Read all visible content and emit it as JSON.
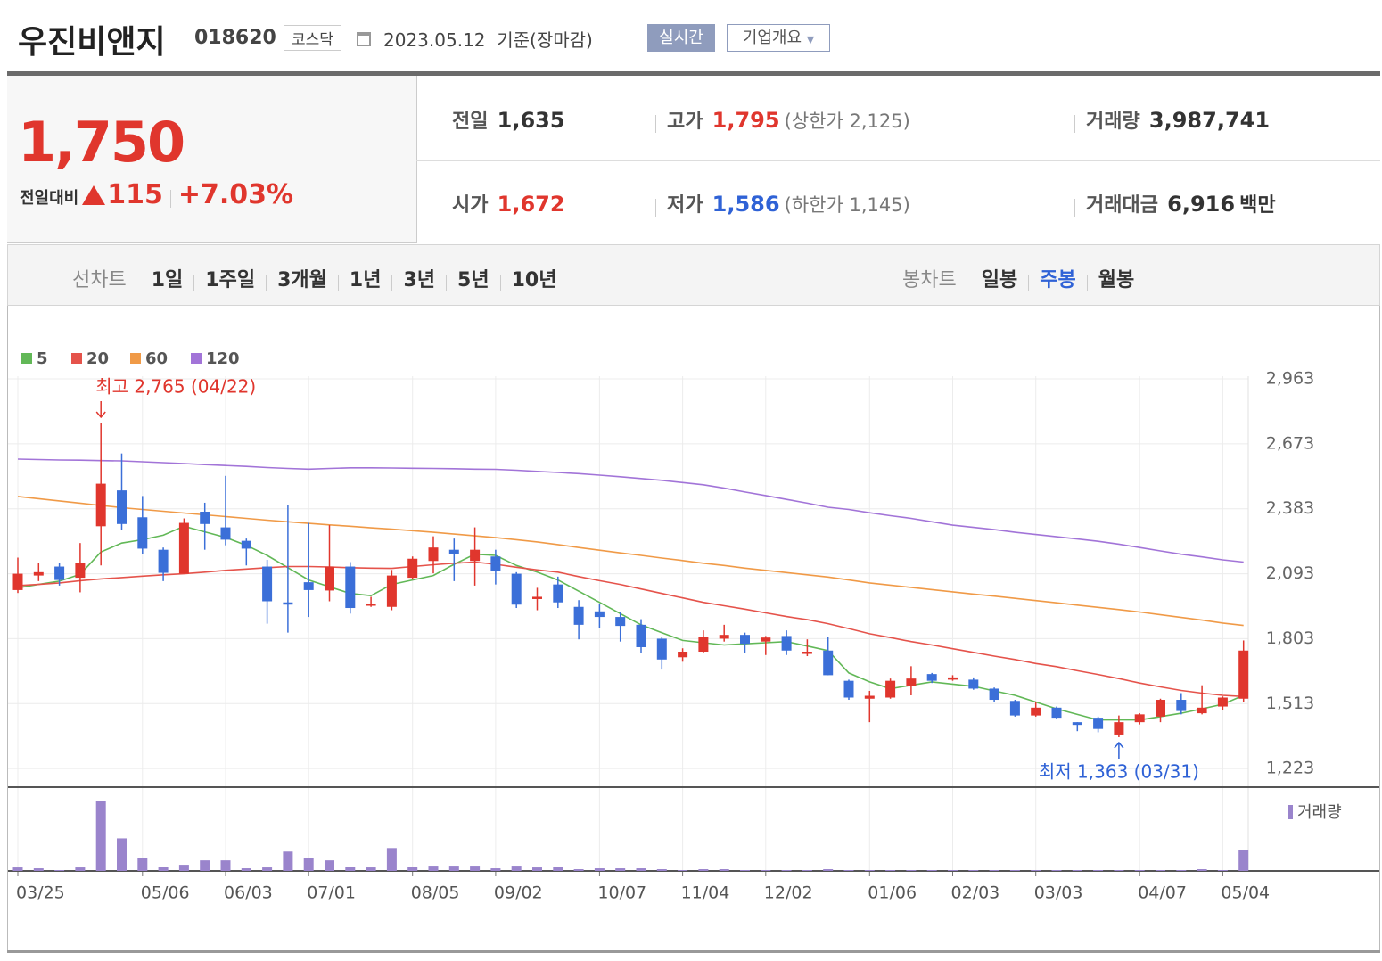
{
  "header": {
    "title": "우진비앤지",
    "code": "018620",
    "market": "코스닥",
    "date": "2023.05.12",
    "basis": "기준(장마감)",
    "realtime": "실시간",
    "company": "기업개요"
  },
  "quote": {
    "price": "1,750",
    "change_label": "전일대비",
    "change": "115",
    "change_pct": "+7.03%",
    "prev_label": "전일",
    "prev": "1,635",
    "open_label": "시가",
    "open": "1,672",
    "high_label": "고가",
    "high": "1,795",
    "upper_limit": "(상한가 2,125)",
    "low_label": "저가",
    "low": "1,586",
    "lower_limit": "(하한가 1,145)",
    "volume_label": "거래량",
    "volume": "3,987,741",
    "amount_label": "거래대금",
    "amount": "6,916",
    "amount_unit": "백만"
  },
  "tabs": {
    "line_label": "선차트",
    "line_periods": [
      "1일",
      "1주일",
      "3개월",
      "1년",
      "3년",
      "5년",
      "10년"
    ],
    "candle_label": "봉차트",
    "candle_periods": [
      "일봉",
      "주봉",
      "월봉"
    ],
    "active": "주봉"
  },
  "chart_data": {
    "type": "candlestick",
    "categories": [
      "03/25",
      null,
      null,
      null,
      null,
      null,
      "05/06",
      null,
      null,
      null,
      "06/03",
      null,
      null,
      null,
      "07/01",
      null,
      null,
      null,
      null,
      "08/05",
      null,
      null,
      null,
      "09/02",
      null,
      null,
      null,
      null,
      "10/07",
      null,
      null,
      null,
      "11/04",
      null,
      null,
      null,
      "12/02",
      null,
      null,
      null,
      null,
      "01/06",
      null,
      null,
      null,
      "02/03",
      null,
      null,
      null,
      "03/03",
      null,
      null,
      null,
      null,
      "04/07",
      null,
      null,
      null,
      "05/04",
      null
    ],
    "open": [
      2020,
      2085,
      2125,
      2075,
      2305,
      2465,
      2345,
      2200,
      2093,
      2370,
      2300,
      2240,
      2125,
      1965,
      2055,
      2018,
      2125,
      1950,
      1945,
      2075,
      2150,
      2200,
      2150,
      2170,
      2093,
      1980,
      2045,
      1945,
      1925,
      1900,
      1865,
      1803,
      1720,
      1745,
      1803,
      1820,
      1790,
      1815,
      1735,
      1750,
      1615,
      1535,
      1540,
      1590,
      1645,
      1620,
      1620,
      1580,
      1525,
      1460,
      1495,
      1430,
      1450,
      1375,
      1430,
      1455,
      1530,
      1470,
      1500,
      1535
    ],
    "high": [
      2165,
      2140,
      2140,
      2230,
      2765,
      2630,
      2440,
      2210,
      2340,
      2410,
      2530,
      2250,
      2155,
      2400,
      2320,
      2310,
      2145,
      1990,
      2110,
      2170,
      2260,
      2250,
      2300,
      2200,
      2100,
      2030,
      2080,
      1975,
      1960,
      1920,
      1890,
      1810,
      1760,
      1840,
      1865,
      1830,
      1815,
      1840,
      1800,
      1810,
      1620,
      1570,
      1625,
      1680,
      1650,
      1640,
      1630,
      1585,
      1530,
      1520,
      1500,
      1430,
      1455,
      1460,
      1470,
      1535,
      1560,
      1595,
      1545,
      1795
    ],
    "low": [
      2007,
      2060,
      2040,
      2010,
      2130,
      2290,
      2180,
      2060,
      2093,
      2200,
      2220,
      2130,
      1870,
      1830,
      1900,
      1970,
      1915,
      1945,
      1930,
      2070,
      2095,
      2060,
      2040,
      2045,
      1940,
      1930,
      1940,
      1800,
      1850,
      1790,
      1740,
      1665,
      1700,
      1740,
      1790,
      1740,
      1730,
      1730,
      1725,
      1640,
      1530,
      1430,
      1535,
      1550,
      1605,
      1615,
      1575,
      1520,
      1455,
      1455,
      1445,
      1390,
      1385,
      1363,
      1420,
      1430,
      1465,
      1465,
      1485,
      1520
    ],
    "close": [
      2093,
      2100,
      2065,
      2140,
      2495,
      2315,
      2205,
      2097,
      2320,
      2315,
      2245,
      2205,
      1970,
      1955,
      2020,
      2125,
      1940,
      1960,
      2085,
      2160,
      2210,
      2180,
      2200,
      2105,
      1955,
      1990,
      1965,
      1865,
      1900,
      1860,
      1765,
      1710,
      1745,
      1810,
      1820,
      1780,
      1808,
      1750,
      1745,
      1640,
      1540,
      1548,
      1615,
      1625,
      1615,
      1630,
      1580,
      1530,
      1460,
      1495,
      1450,
      1418,
      1400,
      1430,
      1465,
      1530,
      1480,
      1495,
      1540,
      1750
    ],
    "up_color": "#e0362d",
    "down_color": "#3b6fd8",
    "ma_series": [
      {
        "name": "5",
        "color": "#62b857",
        "values": [
          2030,
          2045,
          2060,
          2090,
          2190,
          2230,
          2245,
          2265,
          2305,
          2280,
          2255,
          2220,
          2175,
          2120,
          2065,
          2035,
          2005,
          1995,
          2045,
          2065,
          2085,
          2135,
          2180,
          2175,
          2130,
          2100,
          2065,
          2015,
          1965,
          1915,
          1865,
          1830,
          1795,
          1785,
          1775,
          1780,
          1785,
          1790,
          1770,
          1750,
          1650,
          1610,
          1580,
          1595,
          1610,
          1600,
          1590,
          1570,
          1550,
          1520,
          1490,
          1465,
          1440,
          1440,
          1440,
          1455,
          1470,
          1490,
          1510,
          1550
        ]
      },
      {
        "name": "20",
        "color": "#e5534b",
        "values": [
          2040,
          2045,
          2052,
          2062,
          2070,
          2076,
          2082,
          2088,
          2093,
          2100,
          2108,
          2114,
          2120,
          2125,
          2125,
          2123,
          2120,
          2118,
          2117,
          2125,
          2133,
          2140,
          2145,
          2135,
          2122,
          2110,
          2100,
          2080,
          2062,
          2045,
          2025,
          2005,
          1985,
          1965,
          1950,
          1935,
          1918,
          1902,
          1888,
          1870,
          1848,
          1825,
          1808,
          1790,
          1775,
          1758,
          1742,
          1725,
          1710,
          1692,
          1678,
          1660,
          1643,
          1625,
          1605,
          1588,
          1572,
          1560,
          1550,
          1545
        ]
      },
      {
        "name": "60",
        "color": "#f09a47",
        "values": [
          2438,
          2428,
          2418,
          2408,
          2398,
          2388,
          2380,
          2372,
          2364,
          2356,
          2348,
          2340,
          2332,
          2325,
          2318,
          2311,
          2305,
          2298,
          2292,
          2285,
          2278,
          2270,
          2262,
          2254,
          2245,
          2235,
          2223,
          2210,
          2198,
          2186,
          2175,
          2163,
          2152,
          2140,
          2130,
          2118,
          2108,
          2098,
          2088,
          2078,
          2065,
          2052,
          2042,
          2032,
          2022,
          2012,
          2002,
          1993,
          1983,
          1973,
          1963,
          1953,
          1943,
          1933,
          1922,
          1910,
          1898,
          1886,
          1873,
          1862
        ]
      },
      {
        "name": "120",
        "color": "#a274d8",
        "values": [
          2605,
          2603,
          2601,
          2600,
          2598,
          2597,
          2593,
          2589,
          2585,
          2580,
          2576,
          2572,
          2567,
          2563,
          2560,
          2563,
          2566,
          2566,
          2565,
          2564,
          2563,
          2562,
          2560,
          2559,
          2555,
          2550,
          2545,
          2540,
          2533,
          2526,
          2518,
          2510,
          2500,
          2490,
          2475,
          2458,
          2442,
          2425,
          2408,
          2390,
          2380,
          2365,
          2352,
          2340,
          2325,
          2310,
          2300,
          2290,
          2278,
          2268,
          2258,
          2248,
          2238,
          2225,
          2210,
          2195,
          2180,
          2168,
          2155,
          2145
        ]
      }
    ],
    "ylim": [
      1140,
      2975
    ],
    "yticks": [
      {
        "value": 1223,
        "label": "1,223"
      },
      {
        "value": 1513,
        "label": "1,513"
      },
      {
        "value": 1803,
        "label": "1,803"
      },
      {
        "value": 2093,
        "label": "2,093"
      },
      {
        "value": 2383,
        "label": "2,383"
      },
      {
        "value": 2673,
        "label": "2,673"
      },
      {
        "value": 2963,
        "label": "2,963"
      }
    ],
    "annotations": {
      "high": "최고 2,765 (04/22)",
      "low": "최저 1,363 (03/31)"
    },
    "volume": {
      "name": "거래량",
      "color": "#9a84cc",
      "ylim": [
        0,
        85
      ],
      "values": [
        4,
        3,
        1,
        4,
        79,
        37,
        15,
        5,
        7,
        12,
        12,
        3,
        4,
        22,
        15,
        12,
        5,
        4,
        26,
        5,
        6,
        6,
        6,
        3,
        6,
        4,
        5,
        2,
        3,
        3,
        3,
        2,
        1,
        2,
        2,
        1,
        1,
        1,
        1,
        2,
        1,
        1,
        1,
        1,
        1,
        1,
        1,
        1,
        1,
        1,
        1,
        1,
        1,
        1,
        1,
        1,
        1,
        2,
        1,
        24
      ]
    }
  }
}
